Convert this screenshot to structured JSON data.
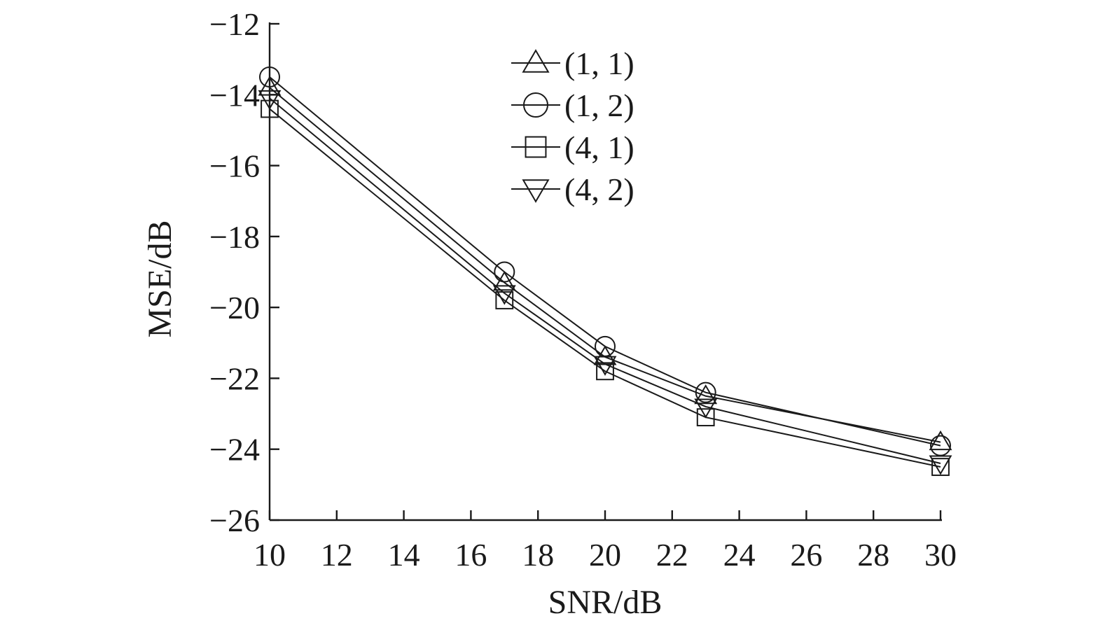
{
  "chart_data": {
    "type": "line",
    "title": "",
    "xlabel": "SNR/dB",
    "ylabel": "MSE/dB",
    "xlim": [
      10,
      30
    ],
    "ylim": [
      -26,
      -12
    ],
    "xticks": [
      10,
      12,
      14,
      16,
      18,
      20,
      22,
      24,
      26,
      28,
      30
    ],
    "yticks": [
      -26,
      -24,
      -22,
      -20,
      -18,
      -16,
      -14,
      -12
    ],
    "xtick_labels": [
      "10",
      "12",
      "14",
      "16",
      "18",
      "20",
      "22",
      "24",
      "26",
      "28",
      "30"
    ],
    "ytick_labels": [
      "−26",
      "−24",
      "−22",
      "−20",
      "−18",
      "−16",
      "−14",
      "−12"
    ],
    "x": [
      10,
      17,
      20,
      23,
      30
    ],
    "legend_position": "top-center",
    "grid": false,
    "line_color": "#1a1a1a",
    "series": [
      {
        "name": "(1, 1)",
        "marker": "triangle-up",
        "values": [
          -13.8,
          -19.3,
          -21.4,
          -22.5,
          -23.8
        ]
      },
      {
        "name": "(1, 2)",
        "marker": "circle",
        "values": [
          -13.5,
          -19.0,
          -21.1,
          -22.4,
          -23.9
        ]
      },
      {
        "name": "(4, 1)",
        "marker": "square",
        "values": [
          -14.4,
          -19.8,
          -21.8,
          -23.1,
          -24.5
        ]
      },
      {
        "name": "(4, 2)",
        "marker": "triangle-down",
        "values": [
          -14.1,
          -19.6,
          -21.6,
          -22.8,
          -24.4
        ]
      }
    ]
  }
}
